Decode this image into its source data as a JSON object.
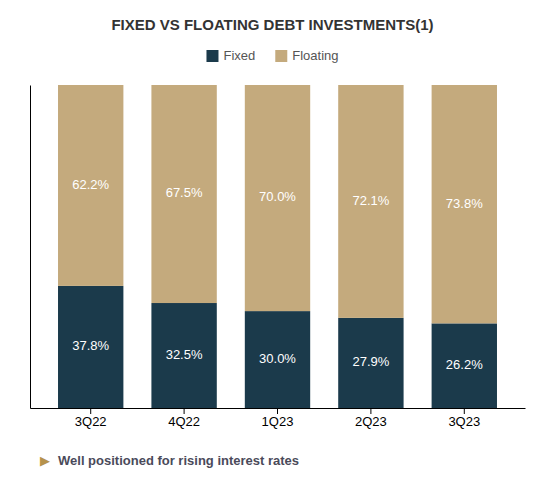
{
  "chart_data": {
    "type": "bar",
    "stacked": true,
    "title": "FIXED VS FLOATING DEBT INVESTMENTS(1)",
    "categories": [
      "3Q22",
      "4Q22",
      "1Q23",
      "2Q23",
      "3Q23"
    ],
    "series": [
      {
        "name": "Fixed",
        "color": "#1b3a4b",
        "values": [
          37.8,
          32.5,
          30.0,
          27.9,
          26.2
        ],
        "value_labels": [
          "37.8%",
          "32.5%",
          "30.0%",
          "27.9%",
          "26.2%"
        ]
      },
      {
        "name": "Floating",
        "color": "#c4aa7d",
        "values": [
          62.2,
          67.5,
          70.0,
          72.1,
          73.8
        ],
        "value_labels": [
          "62.2%",
          "67.5%",
          "70.0%",
          "72.1%",
          "73.8%"
        ]
      }
    ],
    "ylim": [
      0,
      100
    ],
    "yticks": [],
    "grid": false,
    "legend": "top",
    "data_labels": true,
    "tick_labels": "x",
    "annotations": [
      "▶",
      "Well positioned for rising interest rates"
    ]
  }
}
